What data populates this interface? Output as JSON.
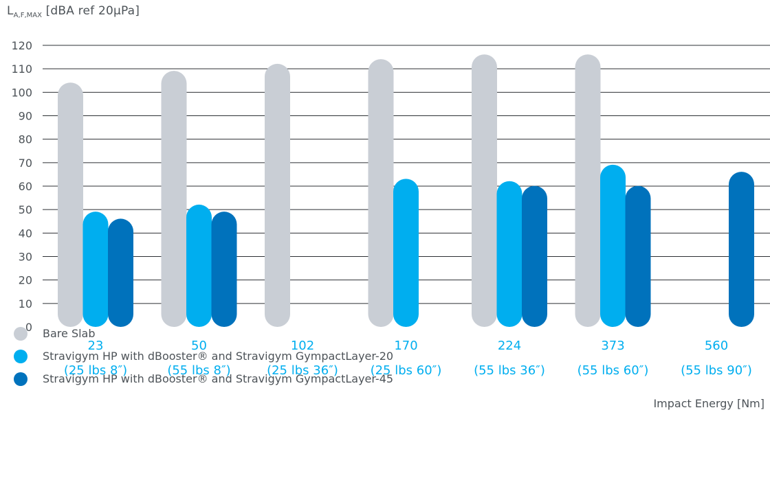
{
  "chart_data": {
    "type": "bar",
    "ylabel_main": "L",
    "ylabel_sub": "A,F,MAX",
    "ylabel_unit": "[dBA ref 20µPa]",
    "xlabel": "Impact Energy [Nm]",
    "ylim": [
      0,
      120
    ],
    "yticks": [
      0,
      10,
      20,
      30,
      40,
      50,
      60,
      70,
      80,
      90,
      100,
      110,
      120
    ],
    "grid": true,
    "legend_position": "bottom-left",
    "categories": [
      {
        "value": "23",
        "sub": "(25 lbs 8″)"
      },
      {
        "value": "50",
        "sub": "(55 lbs 8″)"
      },
      {
        "value": "102",
        "sub": "(25 lbs 36″)"
      },
      {
        "value": "170",
        "sub": "(25 lbs 60″)"
      },
      {
        "value": "224",
        "sub": "(55 lbs 36″)"
      },
      {
        "value": "373",
        "sub": "(55 lbs 60″)"
      },
      {
        "value": "560",
        "sub": "(55 lbs 90″)"
      }
    ],
    "series": [
      {
        "name": "Bare Slab",
        "color": "#c9ced5",
        "values": [
          99,
          104,
          107,
          109,
          111,
          111,
          null
        ]
      },
      {
        "name": "Stravigym HP with dBooster® and Stravigym GympactLayer-20",
        "color": "#00aeef",
        "values": [
          44,
          47,
          null,
          58,
          57,
          64,
          null
        ]
      },
      {
        "name": "Stravigym HP with dBooster® and Stravigym GympactLayer-45",
        "color": "#0072bc",
        "values": [
          41,
          44,
          null,
          null,
          55,
          55,
          61
        ]
      }
    ],
    "tick_color": "#00aeef"
  }
}
